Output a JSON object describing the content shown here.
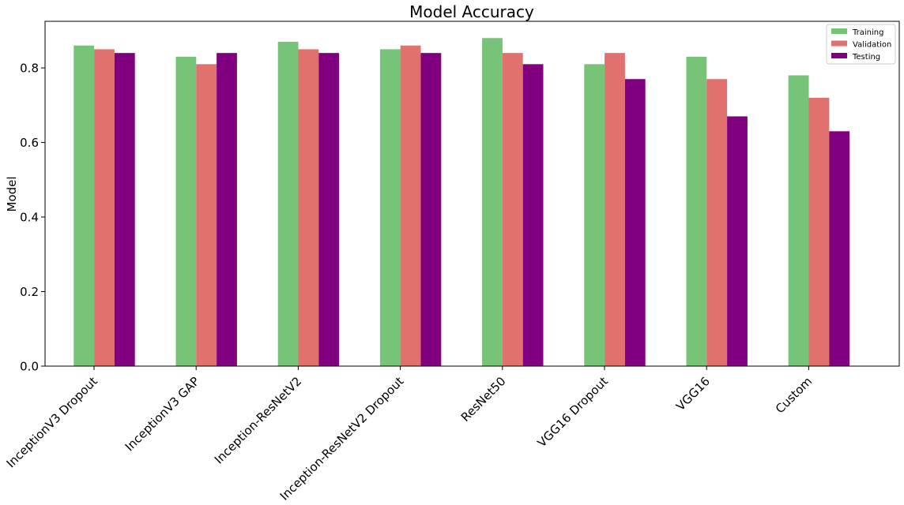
{
  "chart_data": {
    "type": "bar",
    "title": "Model Accuracy",
    "xlabel": "",
    "ylabel": "Model",
    "ylim": [
      0,
      0.925
    ],
    "yticks": [
      "0.0",
      "0.2",
      "0.4",
      "0.6",
      "0.8"
    ],
    "ytick_values": [
      0,
      0.2,
      0.4,
      0.6,
      0.8
    ],
    "grid": false,
    "legend_position": "top-right",
    "categories": [
      "InceptionV3 Dropout",
      "InceptionV3 GAP",
      "Inception-ResNetV2",
      "Inception-ResNetV2 Dropout",
      "ResNet50",
      "VGG16 Dropout",
      "VGG16",
      "Custom"
    ],
    "series": [
      {
        "name": "Training",
        "color": "#77c377",
        "values": [
          0.86,
          0.83,
          0.87,
          0.85,
          0.88,
          0.81,
          0.83,
          0.78
        ]
      },
      {
        "name": "Validation",
        "color": "#e0716e",
        "values": [
          0.85,
          0.81,
          0.85,
          0.86,
          0.84,
          0.84,
          0.77,
          0.72
        ]
      },
      {
        "name": "Testing",
        "color": "#800080",
        "values": [
          0.84,
          0.84,
          0.84,
          0.84,
          0.81,
          0.77,
          0.67,
          0.63
        ]
      }
    ]
  }
}
